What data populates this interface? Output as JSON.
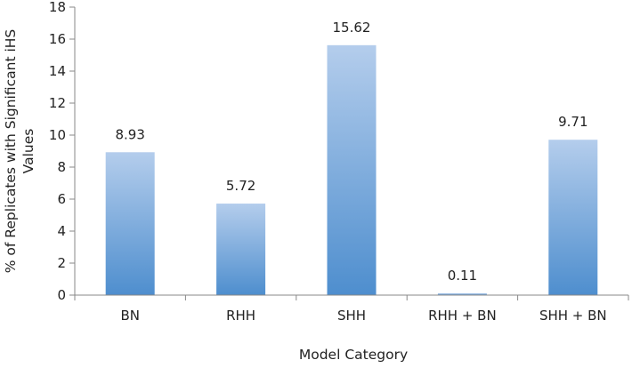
{
  "chart_data": {
    "type": "bar",
    "categories": [
      "BN",
      "RHH",
      "SHH",
      "RHH + BN",
      "SHH + BN"
    ],
    "values": [
      8.93,
      5.72,
      15.62,
      0.11,
      9.71
    ],
    "data_labels": [
      "8.93",
      "5.72",
      "15.62",
      "0.11",
      "9.71"
    ],
    "title": "",
    "xlabel": "Model Category",
    "ylabel_lines": [
      "% of Replicates with Significant iHS",
      "Values"
    ],
    "ylim": [
      0,
      18
    ],
    "yticks": [
      0,
      2,
      4,
      6,
      8,
      10,
      12,
      14,
      16,
      18
    ],
    "grid": false,
    "legend": "none",
    "bar_color_top": "#b4cdec",
    "bar_color_bottom": "#4e8ece"
  }
}
